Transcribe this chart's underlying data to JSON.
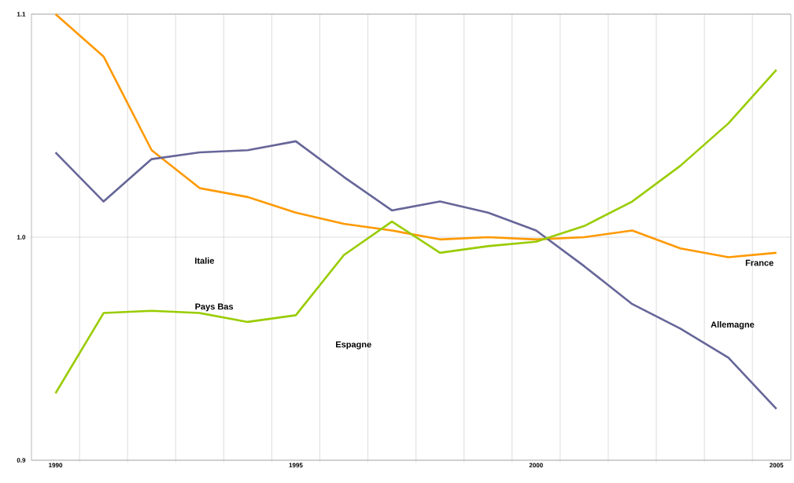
{
  "chart_data": {
    "type": "line",
    "x": [
      1990,
      1991,
      1992,
      1993,
      1994,
      1995,
      1996,
      1997,
      1998,
      1999,
      2000,
      2001,
      2002,
      2003,
      2004,
      2005
    ],
    "series": [
      {
        "name": "France",
        "color": "#ff9900",
        "values": [
          1.1,
          1.081,
          1.039,
          1.022,
          1.018,
          1.011,
          1.006,
          1.003,
          0.999,
          1.0,
          0.999,
          1.0,
          1.003,
          0.995,
          0.991,
          0.993
        ]
      },
      {
        "name": "Allemagne",
        "color": "#666699",
        "values": [
          1.038,
          1.016,
          1.035,
          1.038,
          1.039,
          1.043,
          1.027,
          1.012,
          1.016,
          1.011,
          1.003,
          0.987,
          0.97,
          0.959,
          0.946,
          0.923
        ]
      },
      {
        "color": "#99cc00",
        "values": [
          0.93,
          0.966,
          0.967,
          0.966,
          0.962,
          0.965,
          0.992,
          1.007,
          0.993,
          0.996,
          0.998,
          1.005,
          1.016,
          1.032,
          1.051,
          1.075
        ]
      }
    ],
    "annotations": [
      "Italie",
      "Pays Bas",
      "Espagne"
    ],
    "xlim": [
      1989.5,
      2005.3
    ],
    "xticks": [
      1990,
      1995,
      2000,
      2005,
      {
        "value": 1990.5,
        "label": null
      },
      {
        "value": 1991.5,
        "label": null
      },
      {
        "value": 1992.5,
        "label": null
      },
      {
        "value": 1993.5,
        "label": null
      },
      {
        "value": 1994.5,
        "label": null
      },
      {
        "value": 1995.5,
        "label": null
      },
      {
        "value": 1996.5,
        "label": null
      },
      {
        "value": 1997.5,
        "label": null
      },
      {
        "value": 1998.5,
        "label": null
      },
      {
        "value": 1999.5,
        "label": null
      },
      {
        "value": 2000.5,
        "label": null
      },
      {
        "value": 2001.5,
        "label": null
      },
      {
        "value": 2002.5,
        "label": null
      },
      {
        "value": 2003.5,
        "label": null
      },
      {
        "value": 2004.5,
        "label": null
      }
    ],
    "ylim": [
      0.9,
      1.1
    ],
    "yticks": [
      0.9,
      {
        "value": 1.0,
        "label": "1.0"
      },
      1.1
    ],
    "grid": true,
    "marker": "none",
    "line_style": "solid"
  }
}
